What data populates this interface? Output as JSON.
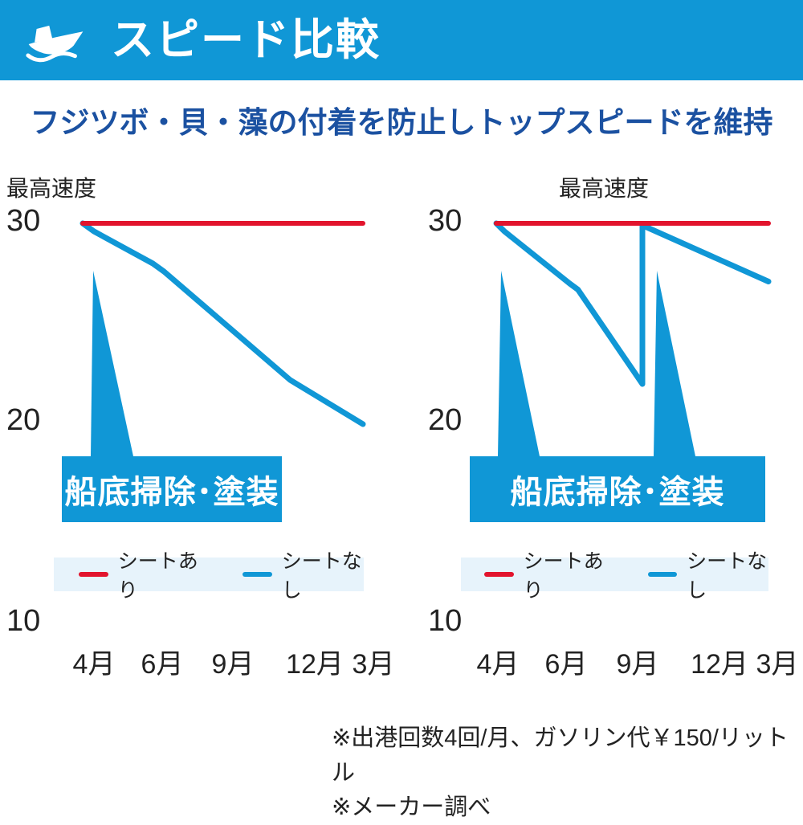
{
  "header": {
    "title": "スピード比較",
    "icon": "boat-icon"
  },
  "subtitle": "フジツボ・貝・藻の付着を防止しトップスピードを維持",
  "colors": {
    "blue": "#1097d6",
    "red": "#e2142d",
    "navy": "#1b51a1",
    "legend_bg": "#e7f3fb"
  },
  "chart_data": [
    {
      "type": "line",
      "title": "最高速度",
      "x_labels": [
        "4月",
        "6月",
        "9月",
        "12月",
        "3月"
      ],
      "y_ticks": [
        "30",
        "20",
        "10"
      ],
      "ylim": [
        10,
        31
      ],
      "legend_position": "bottom",
      "annotation": "船底掃除･塗装",
      "series": [
        {
          "name": "シートあり",
          "color": "#e2142d",
          "points": [
            [
              0,
              30
            ],
            [
              1,
              30
            ]
          ]
        },
        {
          "name": "シートなし",
          "color": "#1097d6",
          "points": [
            [
              0,
              30
            ],
            [
              0.04,
              29.6
            ],
            [
              0.25,
              28
            ],
            [
              0.29,
              27.6
            ],
            [
              0.74,
              22.2
            ],
            [
              1,
              20
            ]
          ]
        }
      ]
    },
    {
      "type": "line",
      "title": "最高速度",
      "x_labels": [
        "4月",
        "6月",
        "9月",
        "12月",
        "3月"
      ],
      "y_ticks": [
        "30",
        "20",
        "10"
      ],
      "ylim": [
        10,
        31
      ],
      "legend_position": "bottom",
      "annotation": "船底掃除･塗装",
      "series": [
        {
          "name": "シートあり",
          "color": "#e2142d",
          "points": [
            [
              0,
              30
            ],
            [
              1,
              30
            ]
          ]
        },
        {
          "name": "シートなし",
          "color": "#1097d6",
          "points": [
            [
              0,
              30
            ],
            [
              0.03,
              29.6
            ],
            [
              0.27,
              27
            ],
            [
              0.3,
              26.7
            ],
            [
              0.537,
              22
            ],
            [
              0.537,
              29.9
            ],
            [
              1,
              27.1
            ]
          ]
        }
      ]
    }
  ],
  "footnotes": [
    "※出港回数4回/月、ガソリン代￥150/リットル",
    "※メーカー調べ"
  ]
}
